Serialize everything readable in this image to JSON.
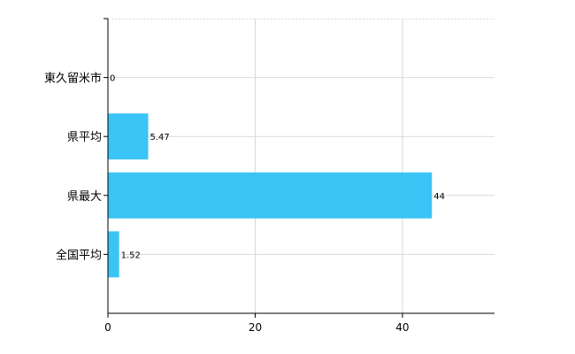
{
  "chart_data": {
    "type": "bar",
    "orientation": "horizontal",
    "categories": [
      "東久留米市",
      "県平均",
      "県最大",
      "全国平均"
    ],
    "values": [
      0,
      5.47,
      44,
      1.52
    ],
    "value_labels": [
      "0",
      "5.47",
      "44",
      "1.52"
    ],
    "x_ticks": [
      0,
      20,
      40
    ],
    "x_tick_labels": [
      "0",
      "20",
      "40"
    ],
    "xlim": [
      0,
      52.5
    ],
    "title": "",
    "xlabel": "",
    "ylabel": "",
    "grid": true,
    "legend": "none",
    "colors": {
      "bar": "#3bc4f6",
      "grid": "#d9d9d9",
      "axis": "#000000"
    }
  }
}
